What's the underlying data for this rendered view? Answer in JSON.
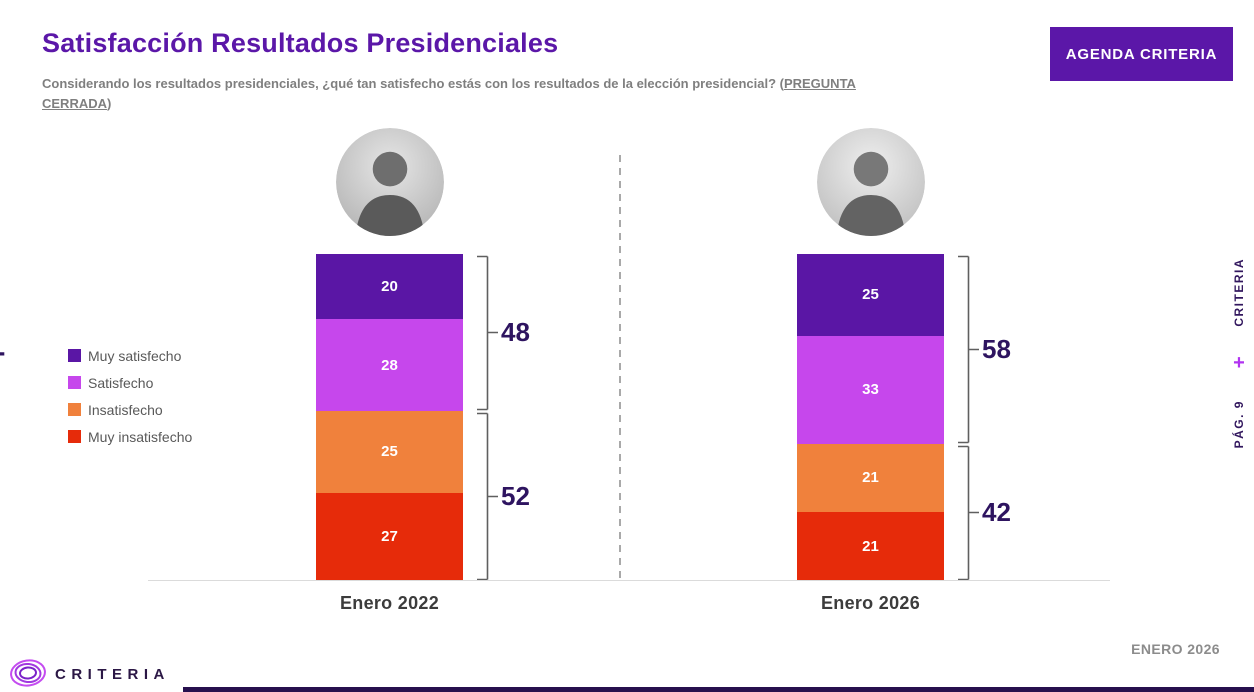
{
  "header": {
    "title": "Satisfacción Resultados Presidenciales",
    "subtitle_prefix": "Considerando los resultados presidenciales, ¿qué tan satisfecho estás con los resultados de la elección presidencial? (",
    "subtitle_link": "PREGUNTA CERRADA",
    "subtitle_suffix": ")",
    "agenda_button_label": "AGENDA CRITERIA"
  },
  "chart_data": {
    "type": "bar",
    "stacked": true,
    "categories": [
      "Enero 2022",
      "Enero 2026"
    ],
    "series": [
      {
        "name": "Muy satisfecho",
        "color": "#5A16A5",
        "values": [
          20,
          25
        ]
      },
      {
        "name": "Satisfecho",
        "color": "#C647EC",
        "values": [
          28,
          33
        ]
      },
      {
        "name": "Insatisfecho",
        "color": "#F0813C",
        "values": [
          25,
          21
        ]
      },
      {
        "name": "Muy insatisfecho",
        "color": "#E62B0A",
        "values": [
          27,
          21
        ]
      }
    ],
    "group_totals": {
      "satisfied": {
        "series": [
          "Muy satisfecho",
          "Satisfecho"
        ],
        "label_values": [
          48,
          58
        ]
      },
      "dissatisfied": {
        "series": [
          "Insatisfecho",
          "Muy insatisfecho"
        ],
        "label_values": [
          52,
          42
        ]
      }
    },
    "ylim": [
      0,
      100
    ],
    "legend_position": "left",
    "value_labels": "inside-white",
    "grid": false
  },
  "avatars": {
    "left": {
      "icon": "grayscale-portrait-president-2022"
    },
    "right": {
      "icon": "grayscale-portrait-president-2026"
    }
  },
  "annotations": {
    "left_plus": "+",
    "side_caption": {
      "brand": "CRITERIA",
      "plus": "+",
      "page": "PÁG. 9"
    }
  },
  "footer": {
    "logo_icon": "criteria-concentric-rings-logo",
    "brand": "CRITERIA",
    "date_label": "ENERO 2026"
  },
  "colors": {
    "title_purple": "#5B17A8",
    "button_purple": "#5B17A8",
    "total_label_purple": "#2E1460",
    "side_plus_magenta": "#B133F1",
    "subtitle_gray": "#7F7F7F",
    "legend_text_gray": "#595959",
    "footer_date_gray": "#8C8C8C",
    "bottom_strip_purple": "#27104E"
  }
}
